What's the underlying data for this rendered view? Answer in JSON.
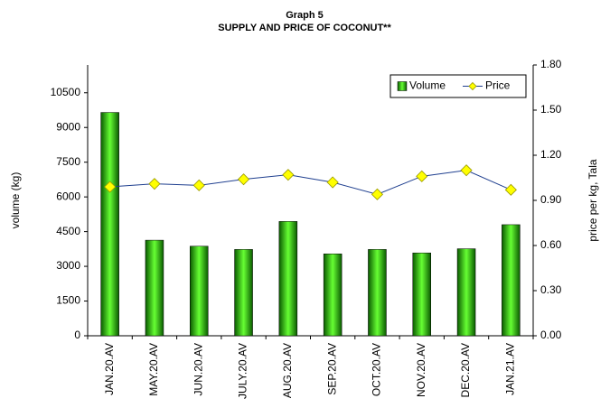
{
  "chart_data": {
    "type": "bar_line",
    "title": "Graph 5",
    "subtitle": "SUPPLY AND PRICE OF COCONUT**",
    "y_label": "volume (kg)",
    "y2_label": "price per kg, Tala",
    "categories": [
      "JAN.20.AV",
      "MAY.20.AV",
      "JUN.20.AV",
      "JULY.20.AV",
      "AUG.20.AV",
      "SEP.20.AV",
      "OCT.20.AV",
      "NOV.20.AV",
      "DEC.20.AV",
      "JAN.21.AV"
    ],
    "series": [
      {
        "name": "Volume",
        "color": "#33cc00",
        "type": "bar",
        "values": [
          9650,
          4130,
          3870,
          3730,
          4940,
          3540,
          3730,
          3580,
          3760,
          4800
        ]
      },
      {
        "name": "Price",
        "color": "#1f3f8f",
        "marker_color": "#ffff00",
        "type": "line",
        "axis": "y2",
        "values": [
          0.99,
          1.01,
          1.0,
          1.04,
          1.07,
          1.02,
          0.94,
          1.06,
          1.1,
          0.97
        ]
      }
    ],
    "ylim": [
      0,
      11700
    ],
    "yticks": [
      0,
      1500,
      3000,
      4500,
      6000,
      7500,
      9000,
      10500
    ],
    "y2lim": [
      0,
      1.8
    ],
    "y2ticks": [
      {
        "value": 0,
        "label": "0.00"
      },
      {
        "value": 0.3,
        "label": "0.30"
      },
      {
        "value": 0.6,
        "label": "0.60"
      },
      {
        "value": 0.9,
        "label": "0.90"
      },
      {
        "value": 1.2,
        "label": "1.20"
      },
      {
        "value": 1.5,
        "label": "1.50"
      },
      {
        "value": 1.8,
        "label": "1.80"
      }
    ],
    "legend": "upper right"
  }
}
